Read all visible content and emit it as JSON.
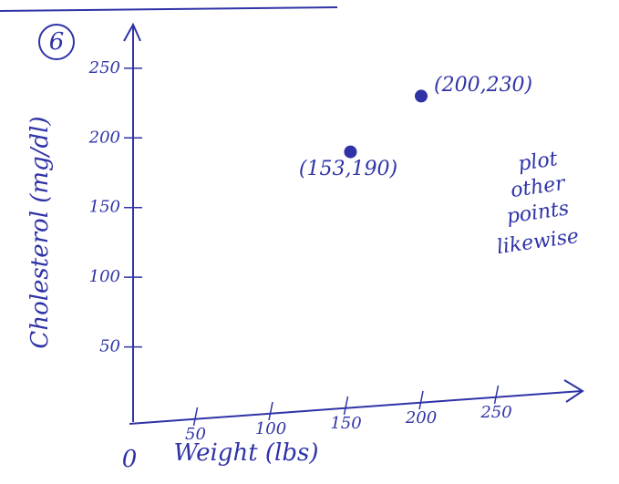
{
  "chart_data": {
    "type": "scatter",
    "title": "6",
    "x_label": "Weight (lbs)",
    "y_label": "Cholesterol (mg/dl)",
    "origin_label": "0",
    "series": [
      {
        "x": [
          153,
          200
        ],
        "values": [
          190,
          230
        ],
        "color": "#2f33a6"
      }
    ],
    "xlim": [
      0,
      300
    ],
    "ylim": [
      0,
      280
    ],
    "xticks": [
      50,
      100,
      150,
      200,
      250
    ],
    "yticks": [
      50,
      100,
      150,
      200,
      250
    ],
    "annotations": [
      "(153,190)",
      "(200,230)",
      "plot",
      "other",
      "points",
      "likewise"
    ]
  }
}
